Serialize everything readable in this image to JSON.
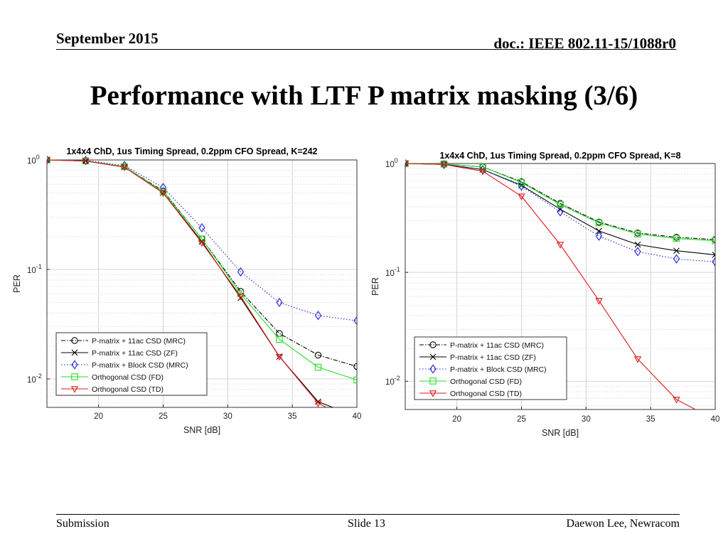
{
  "header": {
    "date": "September 2015",
    "doc": "doc.: IEEE 802.11-15/1088r0"
  },
  "slide": {
    "title": "Performance with LTF P matrix masking (3/6)"
  },
  "footer": {
    "left": "Submission",
    "center": "Slide 13",
    "right": "Daewon Lee, Newracom"
  },
  "colors": {
    "black": "#000000",
    "blue": "#1f1fd6",
    "green": "#22e022",
    "red": "#dd1a1a"
  },
  "chart_data": [
    {
      "type": "line",
      "title": "1x4x4 ChD, 1us Timing Spread, 0.2ppm CFO Spread, K=242",
      "xlabel": "SNR [dB]",
      "ylabel": "PER",
      "xlim": [
        16,
        40
      ],
      "ylim": [
        0.0055,
        1
      ],
      "yscale": "log",
      "xticks": [
        "20",
        "25",
        "30",
        "35",
        "40"
      ],
      "yticks": [
        {
          "base": "10",
          "exp": "0"
        },
        {
          "base": "10",
          "exp": "-1"
        },
        {
          "base": "10",
          "exp": "-2"
        }
      ],
      "grid": true,
      "legend_position": "bottom-left",
      "x": [
        16,
        19,
        22,
        25,
        28,
        31,
        34,
        37,
        40
      ],
      "series": [
        {
          "name": "P-matrix + 11ac CSD (MRC)",
          "values": [
            1,
            0.98,
            0.87,
            0.52,
            0.19,
            0.063,
            0.026,
            0.0165,
            0.013
          ],
          "color": "#000000",
          "dash": "6,2,1.5,2",
          "marker": "circle"
        },
        {
          "name": "P-matrix + 11ac CSD (ZF)",
          "values": [
            1,
            0.98,
            0.86,
            0.5,
            0.18,
            0.055,
            0.016,
            0.0062,
            0.0045
          ],
          "color": "#000000",
          "dash": "",
          "marker": "x"
        },
        {
          "name": "P-matrix + Block CSD (MRC)",
          "values": [
            1,
            0.99,
            0.89,
            0.56,
            0.24,
            0.095,
            0.05,
            0.038,
            0.034
          ],
          "color": "#1f1fd6",
          "dash": "1.5,2.5",
          "marker": "diamond"
        },
        {
          "name": "Orthogonal CSD (FD)",
          "values": [
            1,
            0.98,
            0.87,
            0.51,
            0.19,
            0.06,
            0.023,
            0.0128,
            0.0098
          ],
          "color": "#22e022",
          "dash": "",
          "marker": "square"
        },
        {
          "name": "Orthogonal CSD (TD)",
          "values": [
            1,
            0.98,
            0.86,
            0.5,
            0.175,
            0.057,
            0.016,
            0.006,
            0.004
          ],
          "color": "#dd1a1a",
          "dash": "",
          "marker": "tri-down"
        }
      ]
    },
    {
      "type": "line",
      "title": "1x4x4 ChD, 1us Timing Spread, 0.2ppm CFO Spread, K=8",
      "xlabel": "SNR [dB]",
      "ylabel": "PER",
      "xlim": [
        16,
        40
      ],
      "ylim": [
        0.0055,
        1
      ],
      "yscale": "log",
      "xticks": [
        "20",
        "25",
        "30",
        "35",
        "40"
      ],
      "yticks": [
        {
          "base": "10",
          "exp": "0"
        },
        {
          "base": "10",
          "exp": "-1"
        },
        {
          "base": "10",
          "exp": "-2"
        }
      ],
      "grid": true,
      "legend_position": "bottom-left",
      "x": [
        16,
        19,
        22,
        25,
        28,
        31,
        34,
        37,
        40
      ],
      "series": [
        {
          "name": "P-matrix + 11ac CSD (MRC)",
          "values": [
            1,
            0.99,
            0.93,
            0.68,
            0.43,
            0.29,
            0.23,
            0.21,
            0.2
          ],
          "color": "#000000",
          "dash": "6,2,1.5,2",
          "marker": "circle"
        },
        {
          "name": "P-matrix + 11ac CSD (ZF)",
          "values": [
            1,
            0.98,
            0.88,
            0.63,
            0.38,
            0.24,
            0.18,
            0.158,
            0.145
          ],
          "color": "#000000",
          "dash": "",
          "marker": "x"
        },
        {
          "name": "P-matrix + Block CSD (MRC)",
          "values": [
            1,
            0.98,
            0.88,
            0.62,
            0.36,
            0.215,
            0.155,
            0.133,
            0.125
          ],
          "color": "#1f1fd6",
          "dash": "1.5,2.5",
          "marker": "diamond"
        },
        {
          "name": "Orthogonal CSD (FD)",
          "values": [
            1,
            0.99,
            0.93,
            0.67,
            0.42,
            0.285,
            0.225,
            0.205,
            0.195
          ],
          "color": "#22e022",
          "dash": "",
          "marker": "square"
        },
        {
          "name": "Orthogonal CSD (TD)",
          "values": [
            1,
            0.98,
            0.85,
            0.5,
            0.18,
            0.055,
            0.016,
            0.0068,
            0.0044
          ],
          "color": "#dd1a1a",
          "dash": "",
          "marker": "tri-down"
        }
      ]
    }
  ]
}
